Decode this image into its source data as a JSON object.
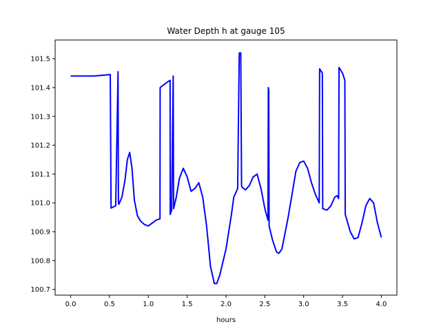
{
  "chart_data": {
    "type": "line",
    "title": "Water Depth h at gauge 105",
    "xlabel": "hours",
    "ylabel": "",
    "xlim": [
      -0.2,
      4.2
    ],
    "ylim": [
      100.68,
      101.565
    ],
    "xticks": [
      0.0,
      0.5,
      1.0,
      1.5,
      2.0,
      2.5,
      3.0,
      3.5,
      4.0
    ],
    "xtick_labels": [
      "0.0",
      "0.5",
      "1.0",
      "1.5",
      "2.0",
      "2.5",
      "3.0",
      "3.5",
      "4.0"
    ],
    "yticks": [
      100.7,
      100.8,
      100.9,
      101.0,
      101.1,
      101.2,
      101.3,
      101.4,
      101.5
    ],
    "ytick_labels": [
      "100.7",
      "100.8",
      "100.9",
      "101.0",
      "101.1",
      "101.2",
      "101.3",
      "101.4",
      "101.5"
    ],
    "grid": false,
    "series": [
      {
        "name": "",
        "color": "#0000ff",
        "x": [
          0.0,
          0.3,
          0.51,
          0.52,
          0.58,
          0.61,
          0.615,
          0.62,
          0.66,
          0.7,
          0.73,
          0.76,
          0.79,
          0.82,
          0.86,
          0.9,
          0.95,
          1.0,
          1.05,
          1.1,
          1.15,
          1.152,
          1.2,
          1.25,
          1.28,
          1.282,
          1.3,
          1.32,
          1.325,
          1.33,
          1.36,
          1.4,
          1.45,
          1.5,
          1.55,
          1.6,
          1.65,
          1.7,
          1.75,
          1.8,
          1.85,
          1.88,
          1.92,
          2.0,
          2.07,
          2.1,
          2.15,
          2.17,
          2.172,
          2.19,
          2.2,
          2.205,
          2.25,
          2.3,
          2.35,
          2.4,
          2.45,
          2.5,
          2.54,
          2.545,
          2.55,
          2.555,
          2.6,
          2.65,
          2.68,
          2.72,
          2.8,
          2.9,
          2.95,
          3.0,
          3.05,
          3.1,
          3.15,
          3.2,
          3.205,
          3.24,
          3.245,
          3.3,
          3.35,
          3.4,
          3.43,
          3.45,
          3.455,
          3.5,
          3.53,
          3.535,
          3.6,
          3.65,
          3.7,
          3.75,
          3.8,
          3.85,
          3.9,
          3.95,
          4.0
        ],
        "y": [
          101.44,
          101.44,
          101.445,
          100.982,
          100.99,
          101.455,
          101.0,
          100.995,
          101.02,
          101.08,
          101.15,
          101.175,
          101.12,
          101.01,
          100.955,
          100.937,
          100.925,
          100.92,
          100.93,
          100.94,
          100.945,
          101.4,
          101.41,
          101.42,
          101.425,
          100.96,
          100.975,
          101.44,
          100.98,
          100.985,
          101.02,
          101.085,
          101.12,
          101.09,
          101.04,
          101.05,
          101.07,
          101.02,
          100.92,
          100.78,
          100.72,
          100.72,
          100.75,
          100.84,
          100.96,
          101.02,
          101.05,
          101.51,
          101.52,
          101.52,
          101.06,
          101.055,
          101.045,
          101.06,
          101.09,
          101.1,
          101.05,
          100.98,
          100.94,
          101.4,
          101.39,
          100.92,
          100.87,
          100.83,
          100.825,
          100.84,
          100.95,
          101.11,
          101.14,
          101.145,
          101.12,
          101.07,
          101.03,
          101.0,
          101.465,
          101.45,
          100.98,
          100.975,
          100.99,
          101.02,
          101.025,
          101.015,
          101.47,
          101.45,
          101.425,
          100.96,
          100.9,
          100.875,
          100.88,
          100.93,
          100.99,
          101.015,
          101.0,
          100.93,
          100.88
        ]
      }
    ]
  }
}
